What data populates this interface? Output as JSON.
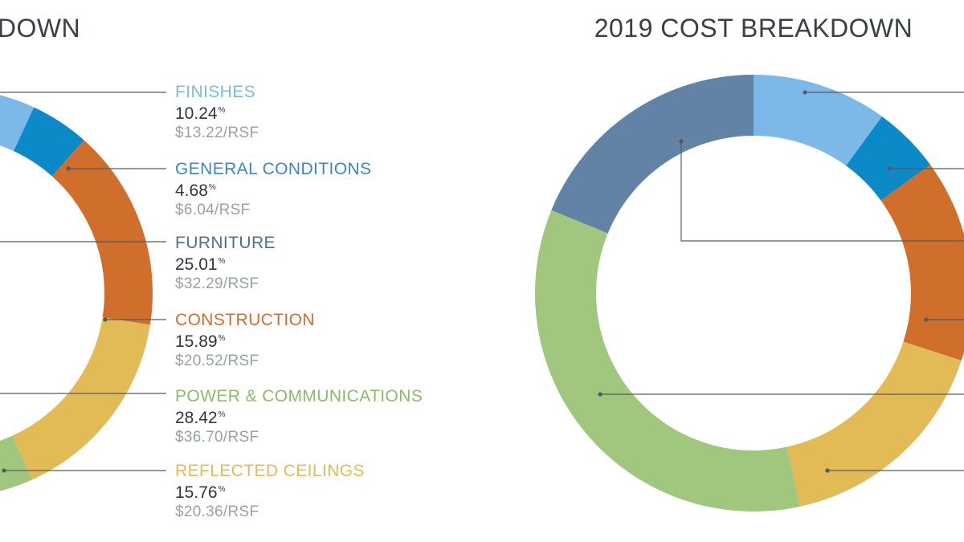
{
  "colors": {
    "finishes": "#7db9e8",
    "general_conditions": "#0c8ac8",
    "furniture": "#6283a6",
    "construction": "#d06f2c",
    "power_communications": "#a1c77e",
    "reflected_ceilings": "#e2ba56",
    "leader_line": "#555a61",
    "title": "#3a3f47",
    "percent_text": "#2f3541",
    "rsf_text": "#9aa0a6",
    "general_conditions_label": "#3a86c8",
    "furniture_label": "#4a7099"
  },
  "charts": [
    {
      "title": "KDOWN",
      "legend": [
        {
          "label": "FINISHES",
          "percent": "10.24",
          "percent_sign": "%",
          "rsf": "$13.22/RSF"
        },
        {
          "label": "GENERAL CONDITIONS",
          "percent": "4.68",
          "percent_sign": "%",
          "rsf": "$6.04/RSF"
        },
        {
          "label": "FURNITURE",
          "percent": "25.01",
          "percent_sign": "%",
          "rsf": "$32.29/RSF"
        },
        {
          "label": "CONSTRUCTION",
          "percent": "15.89",
          "percent_sign": "%",
          "rsf": "$20.52/RSF"
        },
        {
          "label": "POWER & COMMUNICATIONS",
          "percent": "28.42",
          "percent_sign": "%",
          "rsf": "$36.70/RSF"
        },
        {
          "label": "REFLECTED CEILINGS",
          "percent": "15.76",
          "percent_sign": "%",
          "rsf": "$20.36/RSF"
        }
      ]
    },
    {
      "title": "2019 COST BREAKDOWN"
    }
  ],
  "chart_data": [
    {
      "type": "pie",
      "title": "",
      "categories": [
        "FINISHES",
        "GENERAL CONDITIONS",
        "CONSTRUCTION",
        "REFLECTED CEILINGS",
        "POWER & COMMUNICATIONS",
        "FURNITURE"
      ],
      "values": [
        10.24,
        4.68,
        15.89,
        15.76,
        28.42,
        25.01
      ],
      "colors": [
        "#7db9e8",
        "#0c8ac8",
        "#d06f2c",
        "#e2ba56",
        "#a1c77e",
        "#6283a6"
      ],
      "donut": true,
      "start_angle_deg": -12
    },
    {
      "type": "pie",
      "title": "2019 COST BREAKDOWN",
      "categories": [
        "FINISHES",
        "GENERAL CONDITIONS",
        "CONSTRUCTION",
        "REFLECTED CEILINGS",
        "POWER & COMMUNICATIONS",
        "FURNITURE"
      ],
      "values": [
        10.0,
        5.0,
        15.0,
        16.6,
        34.6,
        18.8
      ],
      "colors": [
        "#7db9e8",
        "#0c8ac8",
        "#d06f2c",
        "#e2ba56",
        "#a1c77e",
        "#6283a6"
      ],
      "donut": true,
      "start_angle_deg": 0
    }
  ]
}
